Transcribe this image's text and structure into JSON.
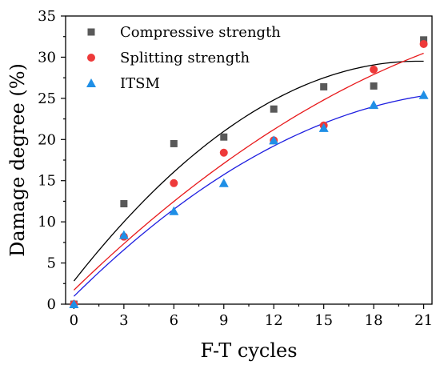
{
  "chart_data": {
    "type": "scatter",
    "title": "",
    "xlabel": "F-T cycles",
    "ylabel": "Damage degree (%)",
    "xlim": [
      -0.5,
      21.5
    ],
    "ylim": [
      0,
      35
    ],
    "x_ticks": [
      0,
      3,
      6,
      9,
      12,
      15,
      18,
      21
    ],
    "y_ticks": [
      0,
      5,
      10,
      15,
      20,
      25,
      30,
      35
    ],
    "legend_position": "top-left",
    "grid": false,
    "fit_curves": "quadratic trend lines per series",
    "series": [
      {
        "name": "Compressive strength",
        "marker": "square",
        "color": "#595959",
        "line_color": "#000000",
        "x": [
          0,
          3,
          6,
          9,
          12,
          15,
          18,
          21
        ],
        "y": [
          0,
          12.2,
          19.5,
          20.3,
          23.7,
          26.4,
          26.5,
          32.1
        ]
      },
      {
        "name": "Splitting strength",
        "marker": "circle",
        "color": "#ee3a3a",
        "line_color": "#e8191b",
        "x": [
          0,
          3,
          6,
          9,
          12,
          15,
          18,
          21
        ],
        "y": [
          0,
          8.2,
          14.7,
          18.4,
          19.9,
          21.7,
          28.5,
          31.6
        ]
      },
      {
        "name": "ITSM",
        "marker": "triangle",
        "color": "#1f8fe6",
        "line_color": "#1f1fe0",
        "x": [
          0,
          3,
          6,
          9,
          12,
          15,
          18,
          21
        ],
        "y": [
          0,
          8.4,
          11.3,
          14.7,
          19.9,
          21.4,
          24.2,
          25.4
        ]
      }
    ]
  }
}
